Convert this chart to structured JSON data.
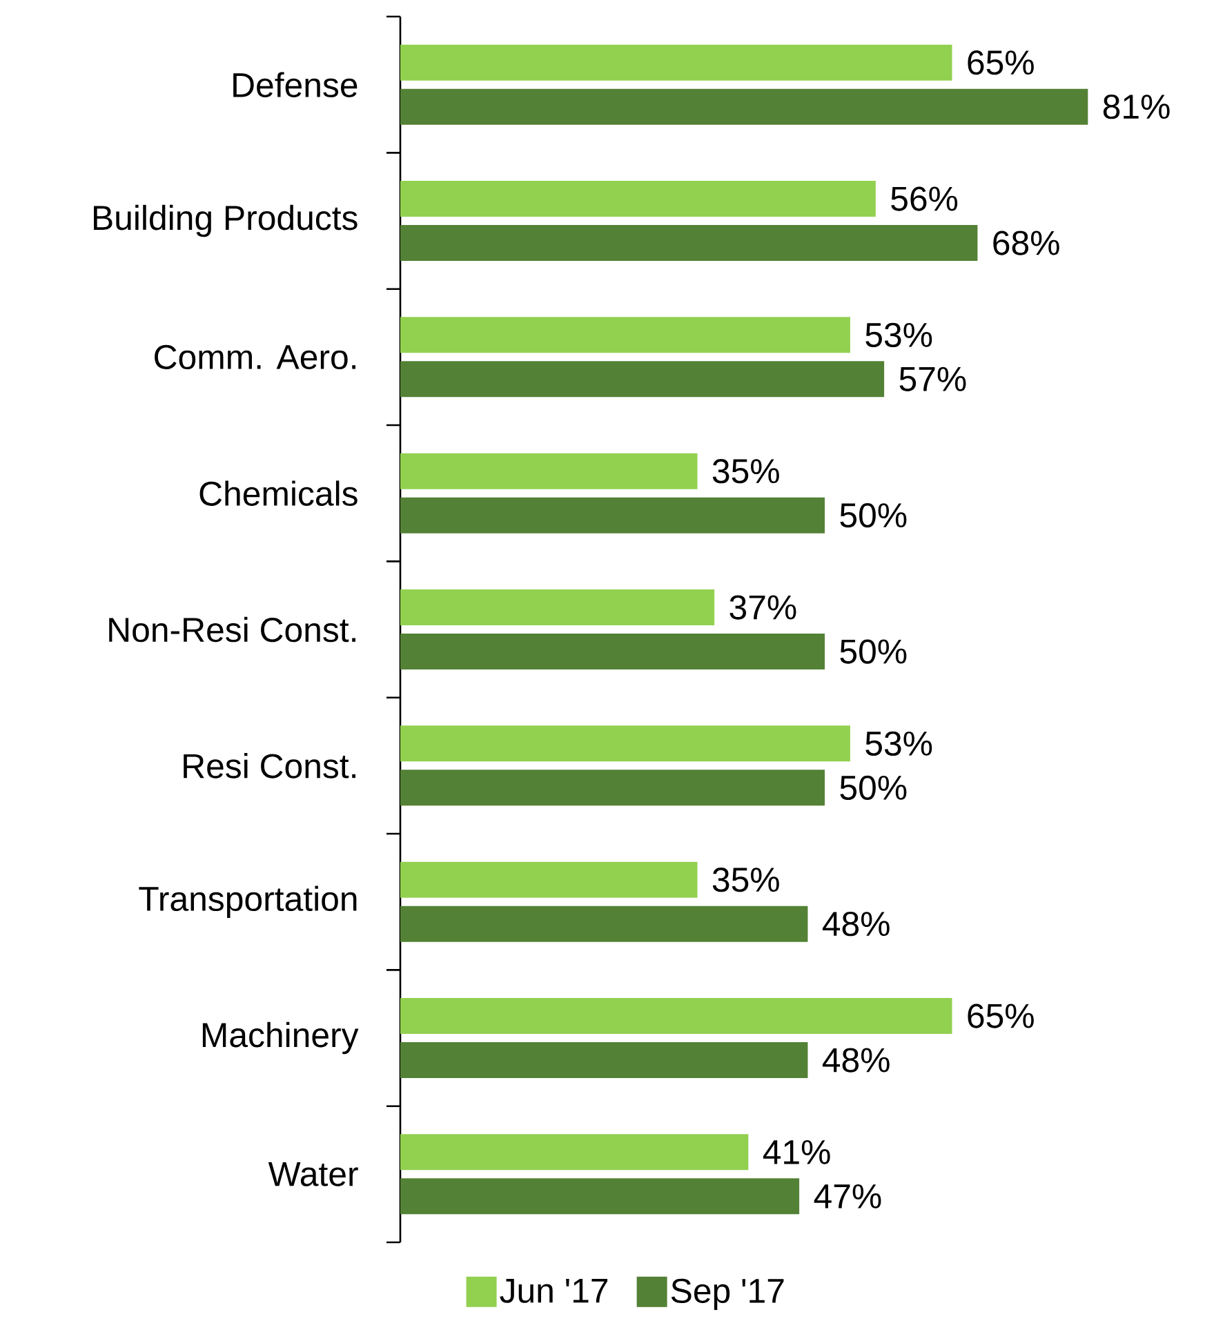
{
  "chart_data": {
    "type": "bar",
    "orientation": "horizontal",
    "tick_labels": "y",
    "legend": "bottom",
    "categories": [
      "Defense",
      "Building Products",
      "Comm. Aero.",
      "Chemicals",
      "Non-Resi Const.",
      "Resi Const.",
      "Transportation",
      "Machinery",
      "Water"
    ],
    "series": [
      {
        "name": "Jun '17",
        "color": "#92d050",
        "values": [
          65,
          56,
          53,
          35,
          37,
          53,
          35,
          65,
          41
        ],
        "value_labels": [
          "65%",
          "56%",
          "53%",
          "35%",
          "37%",
          "53%",
          "35%",
          "65%",
          "41%"
        ]
      },
      {
        "name": "Sep '17",
        "color": "#538135",
        "values": [
          81,
          68,
          57,
          50,
          50,
          50,
          48,
          48,
          47
        ],
        "value_labels": [
          "81%",
          "68%",
          "57%",
          "50%",
          "50%",
          "50%",
          "48%",
          "48%",
          "47%"
        ]
      }
    ]
  }
}
